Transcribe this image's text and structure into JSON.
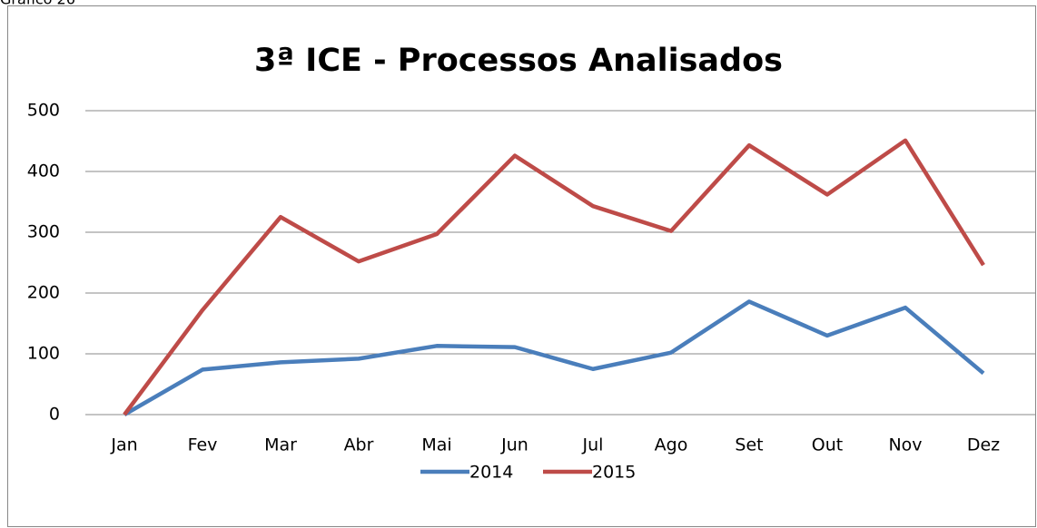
{
  "caption": "Gráfico 26",
  "chart_data": {
    "type": "line",
    "title": "3ª ICE - Processos Analisados",
    "categories": [
      "Jan",
      "Fev",
      "Mar",
      "Abr",
      "Mai",
      "Jun",
      "Jul",
      "Ago",
      "Set",
      "Out",
      "Nov",
      "Dez"
    ],
    "series": [
      {
        "name": "2014",
        "color": "#4a7ebb",
        "values": [
          0,
          74,
          86,
          92,
          113,
          111,
          75,
          102,
          186,
          130,
          176,
          68
        ]
      },
      {
        "name": "2015",
        "color": "#be4b48",
        "values": [
          0,
          172,
          325,
          252,
          297,
          426,
          343,
          302,
          443,
          362,
          451,
          246
        ]
      }
    ],
    "ylim": [
      0,
      500
    ],
    "yticks": [
      0,
      100,
      200,
      300,
      400,
      500
    ],
    "grid": true,
    "legend": "bottom"
  }
}
